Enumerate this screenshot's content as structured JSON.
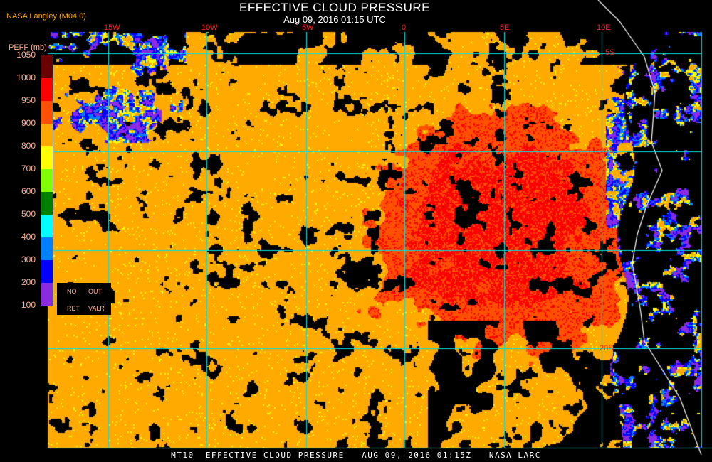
{
  "header": {
    "title": "EFFECTIVE CLOUD PRESSURE",
    "subtitle": "Aug 09, 2016 01:15 UTC",
    "org": "NASA Langley (M04.0)"
  },
  "legend": {
    "unit": "PEFF (mb)",
    "ticks": [
      "1050",
      "1000",
      "950",
      "900",
      "800",
      "700",
      "600",
      "500",
      "400",
      "300",
      "200",
      "100"
    ],
    "colors": [
      "#6b0000",
      "#ff0000",
      "#ff5000",
      "#ffaa00",
      "#ffff00",
      "#80ff00",
      "#008000",
      "#00ffff",
      "#0080ff",
      "#0000ff",
      "#8a2be2"
    ],
    "no_ret": [
      "NO",
      "RET"
    ],
    "out_valr": [
      "OUT",
      "VALR"
    ]
  },
  "grid": {
    "color": "#00e0e0",
    "lon_labels": [
      "15W",
      "10W",
      "5W",
      "0",
      "5E",
      "10E"
    ],
    "lat_labels": [
      "5S",
      "10S",
      "20S"
    ]
  },
  "footer": "MT10  EFFECTIVE CLOUD PRESSURE   AUG 09, 2016 01:15Z   NASA LARC"
}
